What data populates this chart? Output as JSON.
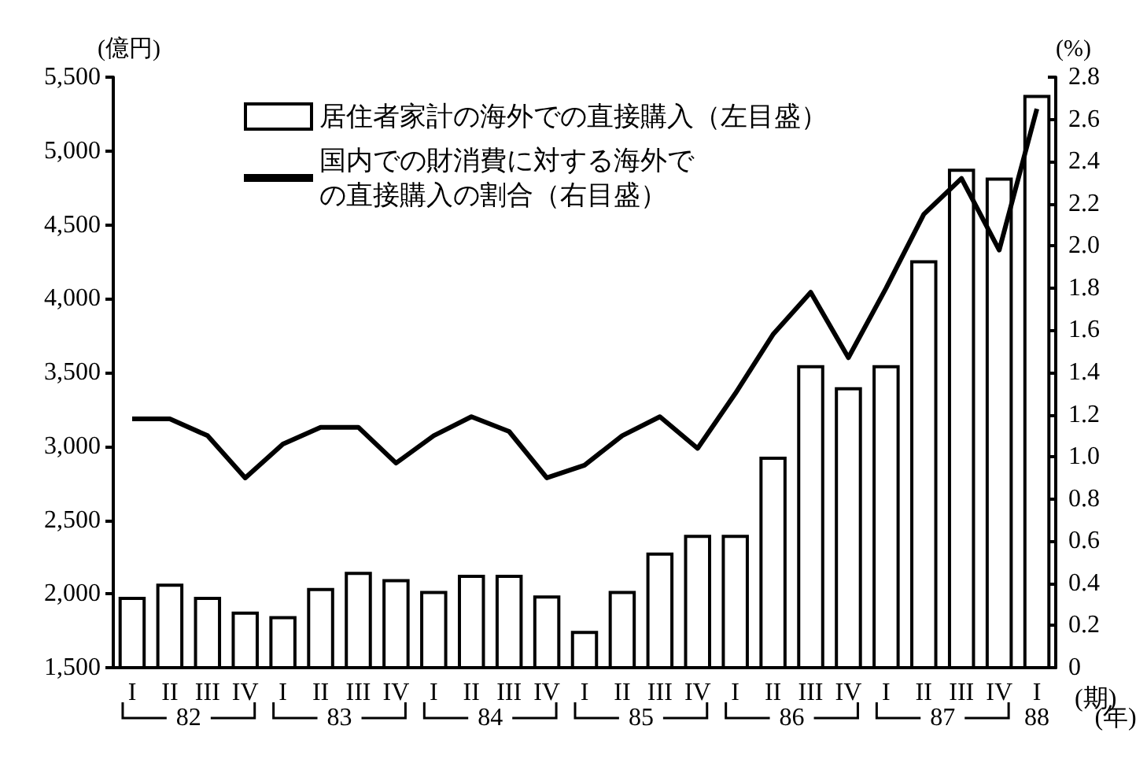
{
  "chart_data": {
    "type": "bar",
    "ylabel": "(億円)",
    "y2label": "(%)",
    "xlabel": "(期)",
    "categories": [
      "I",
      "II",
      "III",
      "IV",
      "I",
      "II",
      "III",
      "IV",
      "I",
      "II",
      "III",
      "IV",
      "I",
      "II",
      "III",
      "IV",
      "I",
      "II",
      "III",
      "IV",
      "I",
      "II",
      "III",
      "IV",
      "I"
    ],
    "series": [
      {
        "name": "居住者家計の海外での直接購入（左目盛）",
        "color": "#ffffff",
        "values": [
          1980,
          2070,
          1980,
          1880,
          1850,
          2040,
          2150,
          2100,
          2020,
          2130,
          2130,
          1990,
          1750,
          2020,
          2280,
          2400,
          2400,
          2930,
          3550,
          3400,
          3550,
          4260,
          4880,
          4820,
          5380
        ]
      },
      {
        "name": "国内での財消費に対する海外での直接購入の割合（右目盛）",
        "type": "line",
        "axis": "y2",
        "color": "#000000",
        "values": [
          1.18,
          1.18,
          1.1,
          0.9,
          1.06,
          1.14,
          1.14,
          0.97,
          1.1,
          1.19,
          1.12,
          0.9,
          0.96,
          1.1,
          1.19,
          1.04,
          1.3,
          1.58,
          1.78,
          1.47,
          1.8,
          2.15,
          2.32,
          1.98,
          2.65
        ]
      }
    ],
    "ylim": [
      1500,
      5500
    ],
    "yticks": [
      {
        "value": 1500,
        "label": "1,500"
      },
      {
        "value": 2000,
        "label": "2,000"
      },
      {
        "value": 2500,
        "label": "2,500"
      },
      {
        "value": 3000,
        "label": "3,000"
      },
      {
        "value": 3500,
        "label": "3,500"
      },
      {
        "value": 4000,
        "label": "4,000"
      },
      {
        "value": 4500,
        "label": "4,500"
      },
      {
        "value": 5000,
        "label": "5,000"
      },
      {
        "value": 5500,
        "label": "5,500"
      }
    ],
    "y2lim": [
      0,
      2.8
    ],
    "y2ticks": [
      0,
      0.2,
      0.4,
      0.6,
      0.8,
      {
        "value": 1,
        "label": "1.0"
      },
      1.2,
      1.4,
      1.6,
      1.8,
      {
        "value": 2,
        "label": "2.0"
      },
      2.2,
      2.4,
      2.6,
      2.8
    ],
    "annotations": [
      "82",
      "83",
      "84",
      "85",
      "86",
      "87",
      "88",
      "(年)"
    ],
    "legend": "top",
    "grid": false,
    "marker": "none",
    "line_style": "solid"
  }
}
